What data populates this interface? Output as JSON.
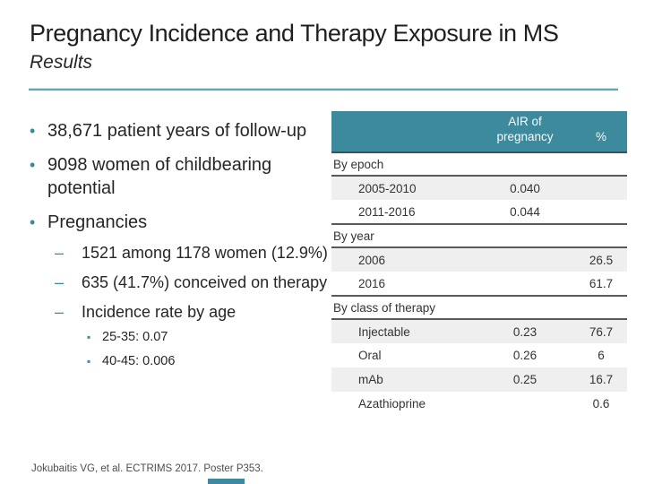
{
  "slide": {
    "title": "Pregnancy Incidence and Therapy Exposure in MS",
    "subtitle": "Results",
    "footer": "Jokubaitis VG, et al. ECTRIMS 2017. Poster P353."
  },
  "colors": {
    "accent_teal": "#3d8a9c",
    "rule_blue": "#6ba3b5",
    "row_stripe": "#efefef",
    "border_dark": "#595959",
    "text_dark": "#1f1f1f"
  },
  "bullets": [
    {
      "level": 1,
      "text": "38,671 patient years of follow-up"
    },
    {
      "level": 1,
      "text": "9098 women of childbearing potential"
    },
    {
      "level": 1,
      "text": "Pregnancies"
    },
    {
      "level": 2,
      "text": "1521 among 1178 women (12.9%)"
    },
    {
      "level": 2,
      "text": "635 (41.7%) conceived on therapy"
    },
    {
      "level": 2,
      "text": "Incidence rate by age"
    },
    {
      "level": 3,
      "text": "25-35: 0.07"
    },
    {
      "level": 3,
      "text": "40-45: 0.006"
    }
  ],
  "table": {
    "columns": [
      "",
      "AIR of pregnancy",
      "%"
    ],
    "rows": [
      {
        "type": "section",
        "label": "By epoch"
      },
      {
        "type": "data",
        "label": "2005-2010",
        "air": "0.040",
        "pct": "",
        "shaded": true
      },
      {
        "type": "data",
        "label": "2011-2016",
        "air": "0.044",
        "pct": "",
        "shaded": false
      },
      {
        "type": "section",
        "label": "By year"
      },
      {
        "type": "data",
        "label": "2006",
        "air": "",
        "pct": "26.5",
        "shaded": true
      },
      {
        "type": "data",
        "label": "2016",
        "air": "",
        "pct": "61.7",
        "shaded": false
      },
      {
        "type": "section",
        "label": "By class of therapy"
      },
      {
        "type": "data",
        "label": "Injectable",
        "air": "0.23",
        "pct": "76.7",
        "shaded": true
      },
      {
        "type": "data",
        "label": "Oral",
        "air": "0.26",
        "pct": "6",
        "shaded": false
      },
      {
        "type": "data",
        "label": "mAb",
        "air": "0.25",
        "pct": "16.7",
        "shaded": true
      },
      {
        "type": "data",
        "label": "Azathioprine",
        "air": "",
        "pct": "0.6",
        "shaded": false
      }
    ]
  }
}
